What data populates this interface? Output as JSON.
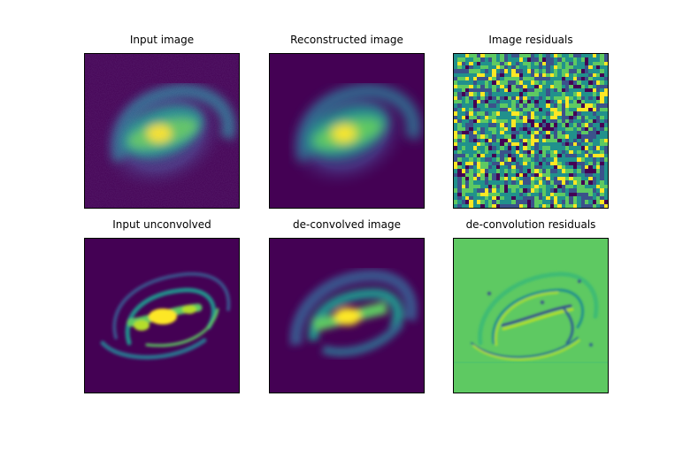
{
  "figure": {
    "panels": [
      {
        "id": "input",
        "title": "Input image"
      },
      {
        "id": "reconstructed",
        "title": "Reconstructed image"
      },
      {
        "id": "image-residuals",
        "title": "Image residuals"
      },
      {
        "id": "input-unconvolved",
        "title": "Input unconvolved"
      },
      {
        "id": "deconvolved",
        "title": "de-convolved image"
      },
      {
        "id": "deconvolution-residuals",
        "title": "de-convolution residuals"
      }
    ],
    "colormap": [
      "#440154",
      "#3b528b",
      "#21918c",
      "#5ec962",
      "#fde725"
    ]
  }
}
